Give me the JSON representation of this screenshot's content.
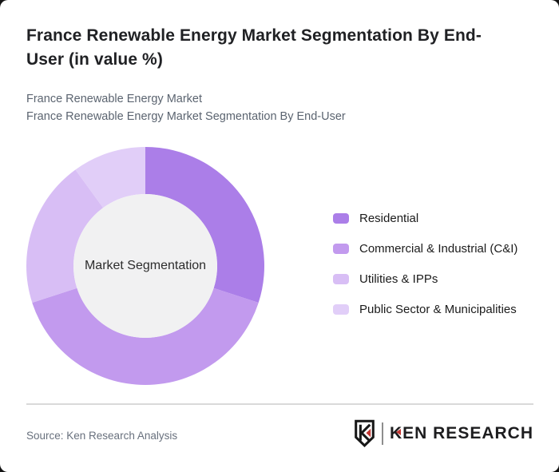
{
  "page": {
    "outer_background": "#141414",
    "card_background": "#ffffff"
  },
  "header": {
    "title": "France Renewable Energy Market Segmentation By End-User (in value %)",
    "subtitle_line1": "France Renewable Energy Market",
    "subtitle_line2": "France Renewable Energy Market Segmentation By End-User"
  },
  "chart_data": {
    "type": "pie",
    "variant": "donut",
    "title": "France Renewable Energy Market Segmentation By End-User (in value %)",
    "center_label": "Market Segmentation",
    "categories": [
      "Residential",
      "Commercial & Industrial (C&I)",
      "Utilities & IPPs",
      "Public Sector & Municipalities"
    ],
    "values": [
      30,
      40,
      20,
      10
    ],
    "unit": "%",
    "values_note": "approximate, estimated from arc angles; no numeric labels shown on chart",
    "colors": [
      "#ab7ee8",
      "#c29aee",
      "#d8bef5",
      "#e1cef8"
    ],
    "start_angle": "12 o'clock",
    "direction": "clockwise",
    "legend_position": "right",
    "center_fill": "#f1f1f2",
    "geometry": {
      "outer_radius": 149,
      "inner_radius": 90
    }
  },
  "footer": {
    "source": "Source: Ken Research Analysis",
    "brand_name": "KEN RESEARCH",
    "brand_accent_color": "#c23531"
  }
}
